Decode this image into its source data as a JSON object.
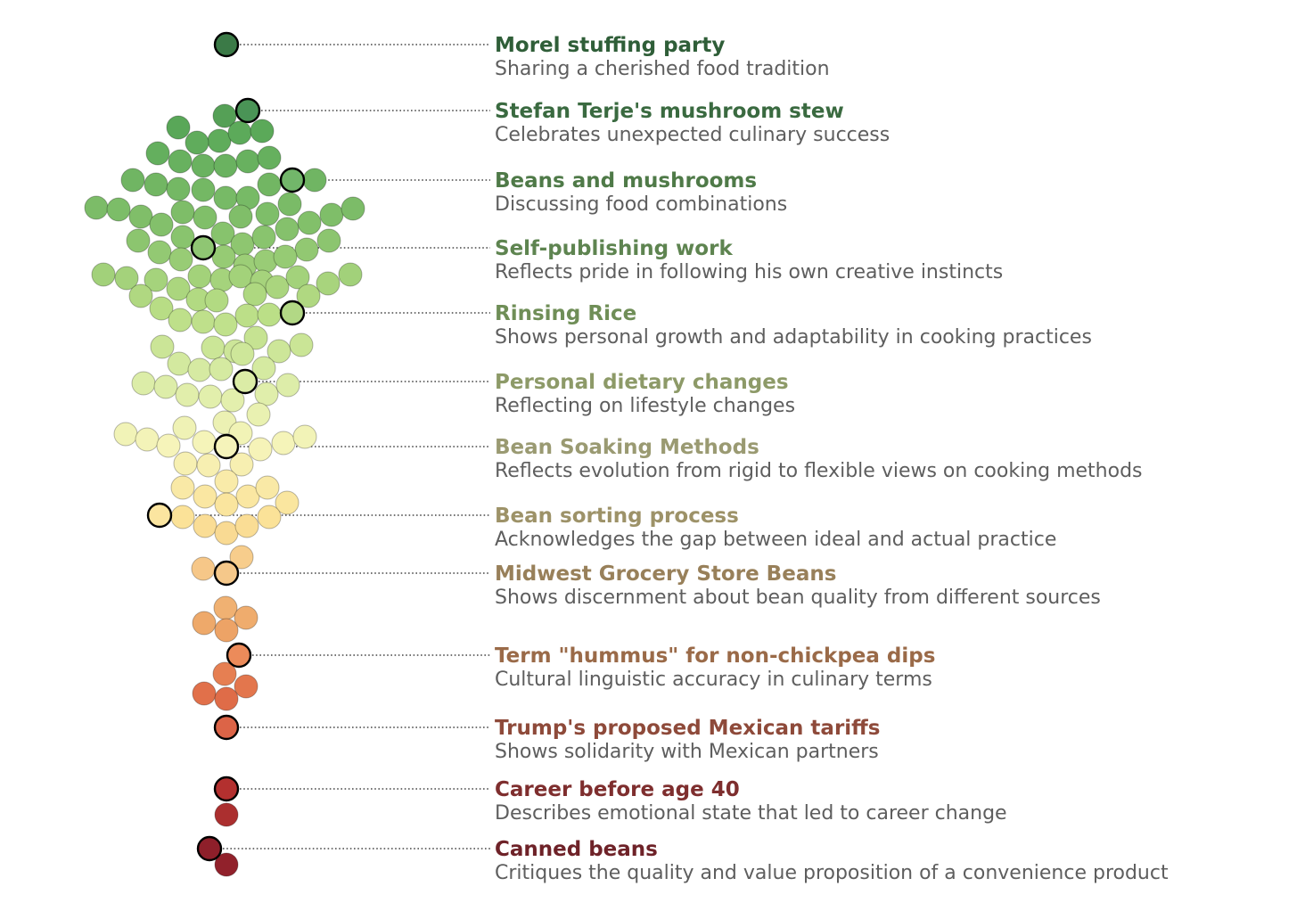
{
  "chart_data": {
    "type": "beeswarm",
    "title": "",
    "xlabel": "",
    "ylabel": "",
    "grid": false,
    "legend": "none",
    "color_scale": {
      "scheme": "green-to-red diverging",
      "top_color": "#2e6b40",
      "bottom_color": "#8e1f2a"
    },
    "highlights": [
      {
        "title": "Morel stuffing party",
        "subtitle": "Sharing a cherished food tradition",
        "title_color": "#2f5e38",
        "dot_color": "#3b7a47"
      },
      {
        "title": "Stefan Terje's mushroom stew",
        "subtitle": "Celebrates unexpected culinary success",
        "title_color": "#3a6a40",
        "dot_color": "#4a9456"
      },
      {
        "title": "Beans and mushrooms",
        "subtitle": "Discussing food combinations",
        "title_color": "#4f7a48",
        "dot_color": "#72b66a"
      },
      {
        "title": "Self-publishing work",
        "subtitle": "Reflects pride in following his own creative instincts",
        "title_color": "#5e8450",
        "dot_color": "#8fc673"
      },
      {
        "title": "Rinsing Rice",
        "subtitle": "Shows personal growth and adaptability in cooking practices",
        "title_color": "#6f8e57",
        "dot_color": "#b2d885"
      },
      {
        "title": "Personal dietary changes",
        "subtitle": "Reflecting on lifestyle changes",
        "title_color": "#8d9a68",
        "dot_color": "#dbeca6"
      },
      {
        "title": "Bean Soaking Methods",
        "subtitle": "Reflects evolution from rigid to flexible views on cooking methods",
        "title_color": "#9a9a72",
        "dot_color": "#f5f3ba"
      },
      {
        "title": "Bean sorting process",
        "subtitle": "Acknowledges the gap between ideal and actual practice",
        "title_color": "#9d9268",
        "dot_color": "#fbe5a0"
      },
      {
        "title": "Midwest Grocery Store Beans",
        "subtitle": "Shows discernment about bean quality from different sources",
        "title_color": "#98805a",
        "dot_color": "#f5c88a"
      },
      {
        "title": "Term \"hummus\" for non-chickpea dips",
        "subtitle": "Cultural linguistic accuracy in culinary terms",
        "title_color": "#9a6a48",
        "dot_color": "#ec8b5a"
      },
      {
        "title": "Trump's proposed Mexican tariffs",
        "subtitle": "Shows solidarity with Mexican partners",
        "title_color": "#8e4a3a",
        "dot_color": "#dc6447"
      },
      {
        "title": "Career before age 40",
        "subtitle": "Describes emotional state that led to career change",
        "title_color": "#7e2e2e",
        "dot_color": "#b3302f"
      },
      {
        "title": "Canned beans",
        "subtitle": "Critiques the quality and value proposition of a convenience product",
        "title_color": "#6e2228",
        "dot_color": "#8e1f2a"
      }
    ],
    "point_count": 118
  }
}
